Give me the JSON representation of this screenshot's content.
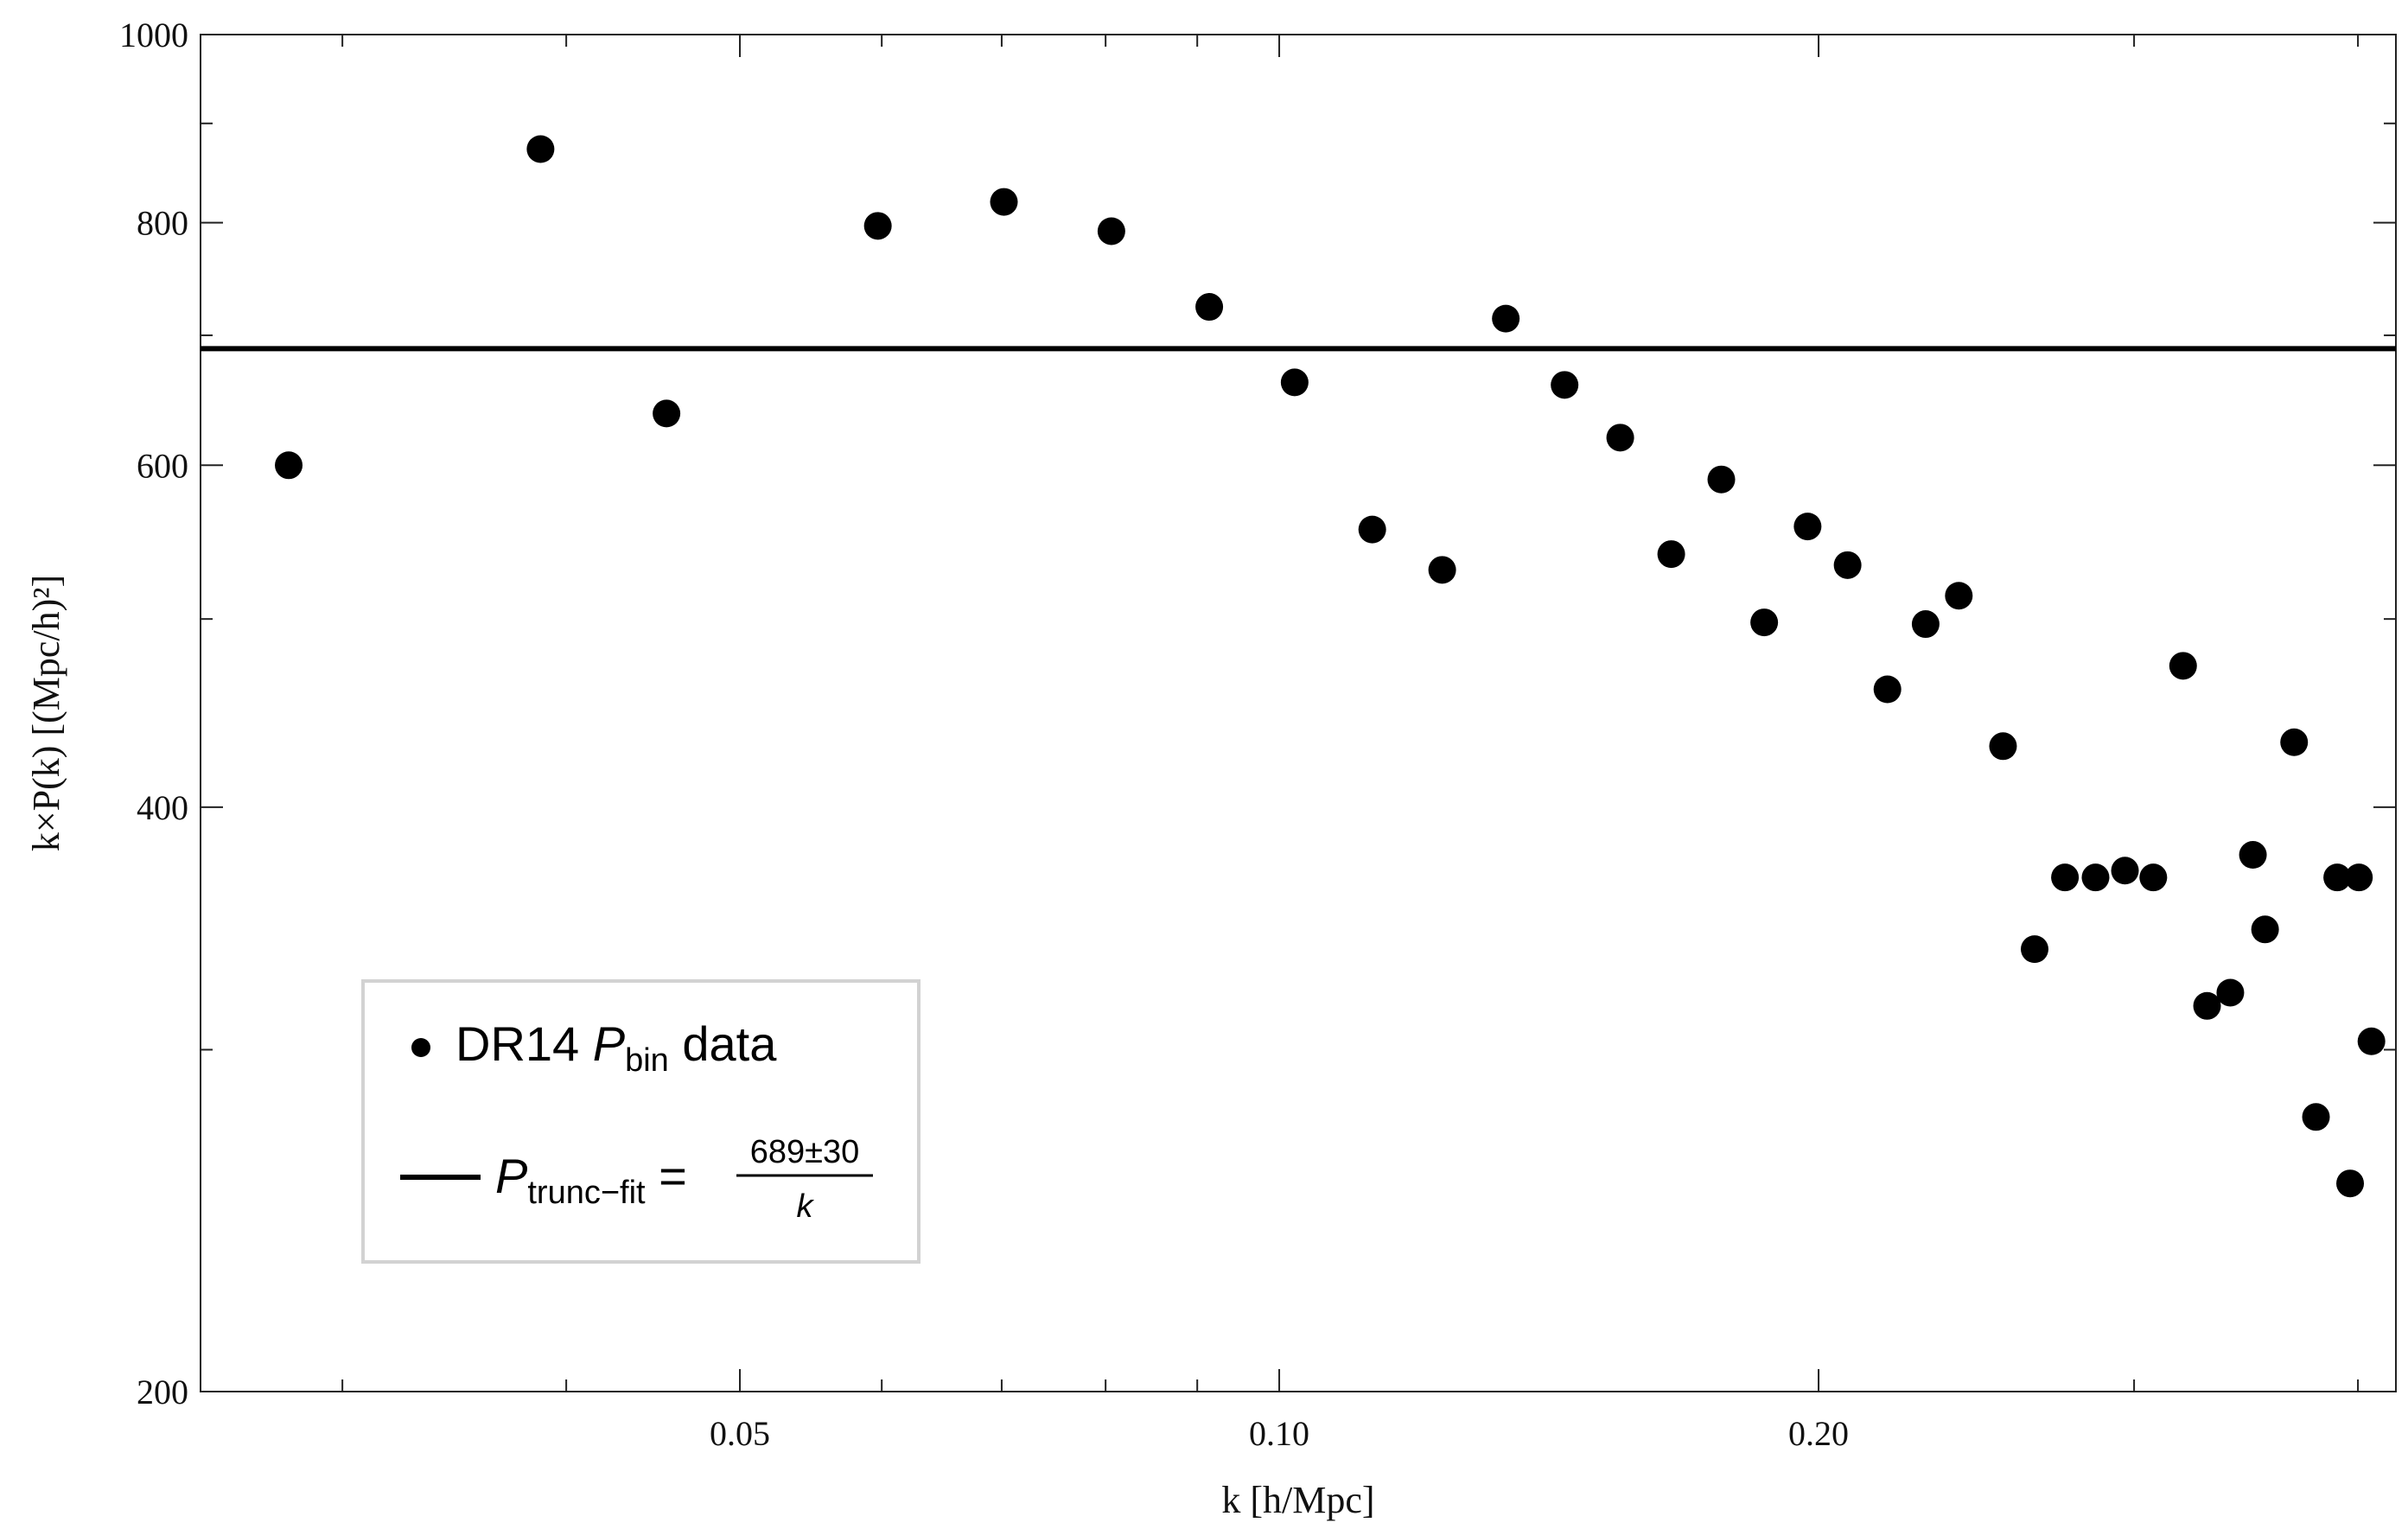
{
  "chart_data": {
    "type": "scatter",
    "xscale": "log",
    "yscale": "log",
    "xlabel": "k [h/Mpc]",
    "ylabel": "k×P(k) [(Mpc/h)²]",
    "xlim": [
      0.025,
      0.42
    ],
    "ylim": [
      200,
      1000
    ],
    "grid": false,
    "legend_position": "bottom-left",
    "x_ticks": [
      {
        "value": 0.05,
        "label": "0.05"
      },
      {
        "value": 0.1,
        "label": "0.10"
      },
      {
        "value": 0.2,
        "label": "0.20"
      }
    ],
    "x_minor_ticks": [
      0.03,
      0.04,
      0.06,
      0.07,
      0.08,
      0.09,
      0.3,
      0.4
    ],
    "y_ticks": [
      {
        "value": 200,
        "label": "200"
      },
      {
        "value": 400,
        "label": "400"
      },
      {
        "value": 600,
        "label": "600"
      },
      {
        "value": 800,
        "label": "800"
      },
      {
        "value": 1000,
        "label": "1000"
      }
    ],
    "y_minor_ticks": [
      300,
      500,
      700,
      900
    ],
    "series": [
      {
        "name": "DR14 P_bin data",
        "type": "scatter",
        "color": "#000000",
        "points": [
          [
            0.028,
            600
          ],
          [
            0.0387,
            873
          ],
          [
            0.0455,
            638
          ],
          [
            0.0597,
            797
          ],
          [
            0.0702,
            820
          ],
          [
            0.0806,
            792
          ],
          [
            0.0914,
            724
          ],
          [
            0.102,
            662
          ],
          [
            0.1127,
            556
          ],
          [
            0.1233,
            530
          ],
          [
            0.1338,
            714
          ],
          [
            0.1443,
            660
          ],
          [
            0.155,
            620
          ],
          [
            0.1655,
            540
          ],
          [
            0.1765,
            590
          ],
          [
            0.1865,
            498
          ],
          [
            0.1972,
            558
          ],
          [
            0.2076,
            533
          ],
          [
            0.2185,
            460
          ],
          [
            0.2295,
            497
          ],
          [
            0.2395,
            514
          ],
          [
            0.2535,
            430
          ],
          [
            0.264,
            338
          ],
          [
            0.2745,
            368
          ],
          [
            0.2855,
            368
          ],
          [
            0.2965,
            371
          ],
          [
            0.3075,
            368
          ],
          [
            0.3195,
            473
          ],
          [
            0.3295,
            316
          ],
          [
            0.3395,
            321
          ],
          [
            0.3495,
            378
          ],
          [
            0.355,
            346
          ],
          [
            0.3685,
            432
          ],
          [
            0.379,
            277
          ],
          [
            0.3895,
            368
          ],
          [
            0.396,
            256
          ],
          [
            0.4005,
            368
          ],
          [
            0.407,
            303
          ]
        ]
      },
      {
        "name": "P_trunc-fit",
        "type": "line",
        "color": "#000000",
        "y_constant": 689
      }
    ],
    "legend": [
      {
        "marker": "dot",
        "main": "DR14 ",
        "italic": "P",
        "sub": "bin",
        "rest": " data"
      },
      {
        "marker": "line",
        "italic": "P",
        "sub": "trunc−fit",
        "eq": " =",
        "frac_num": "689±30",
        "frac_den": "k"
      }
    ]
  }
}
